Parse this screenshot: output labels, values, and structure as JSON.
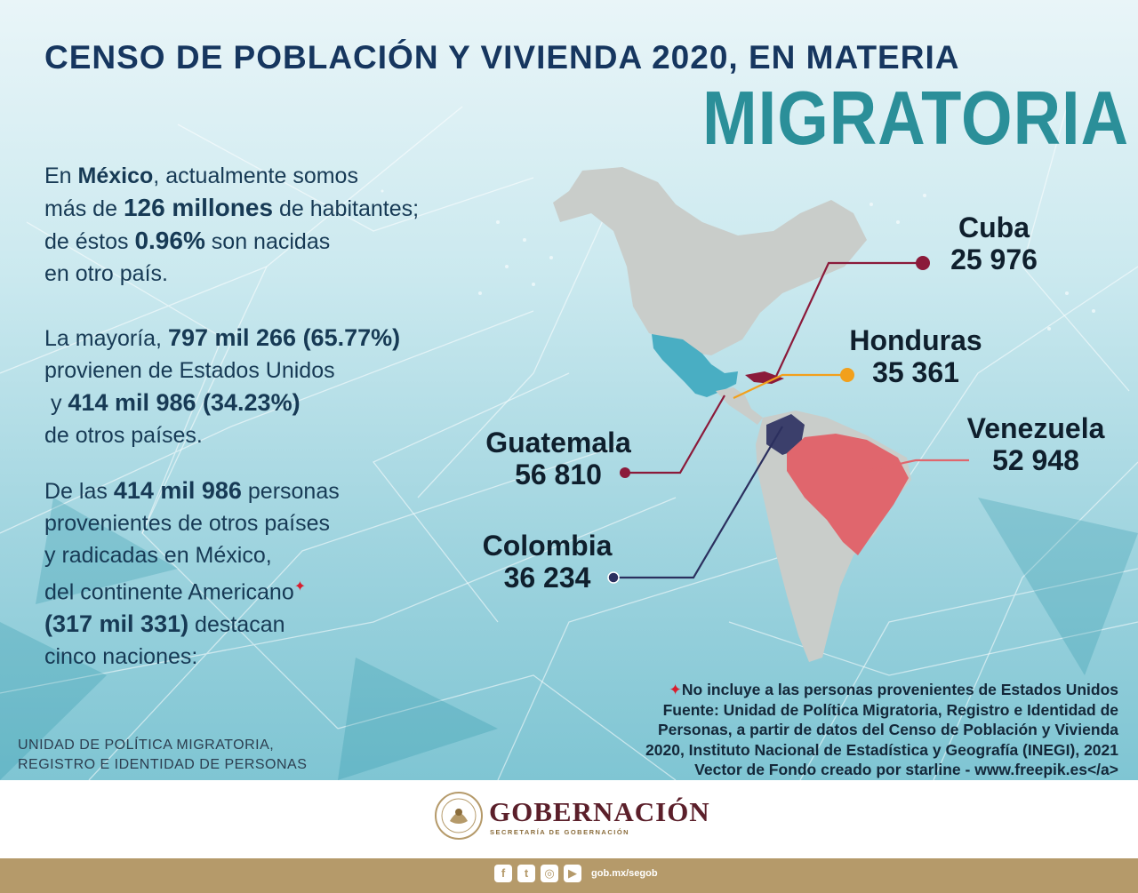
{
  "title": {
    "line1": "CENSO DE POBLACIÓN Y VIVIENDA 2020, EN MATERIA",
    "line2": "MIGRATORIA"
  },
  "intro": {
    "l1a": "En ",
    "l1b": "México",
    "l1c": ", actualmente somos",
    "l2a": "más de ",
    "l2b": "126 millones",
    "l2c": " de habitantes;",
    "l3a": "de éstos ",
    "l3b": "0.96%",
    "l3c": " son nacidas",
    "l4": "en otro país."
  },
  "majority": {
    "l1a": "La mayoría, ",
    "l1b": "797 mil 266 (65.77%)",
    "l2": "provienen de Estados Unidos",
    "l3a": " y ",
    "l3b": "414 mil 986 (34.23%)",
    "l4": "de otros países."
  },
  "others": {
    "l1a": "De las ",
    "l1b": "414 mil 986",
    "l1c": " personas",
    "l2": "provenientes de otros países",
    "l3": "y radicadas en México,",
    "l4": "del continente Americano",
    "l5a": "(317 mil 331)",
    "l5b": " destacan",
    "l6": "cinco naciones:",
    "star": "✦"
  },
  "map": {
    "countries": [
      {
        "name": "Cuba",
        "value": "25 976",
        "color": "#8b1a3a"
      },
      {
        "name": "Honduras",
        "value": "35 361",
        "color": "#f2a01c"
      },
      {
        "name": "Guatemala",
        "value": "56 810",
        "color": "#8b1a3a"
      },
      {
        "name": "Venezuela",
        "value": "52 948",
        "color": "#e0666d"
      },
      {
        "name": "Colombia",
        "value": "36 234",
        "color": "#2b2f5e"
      }
    ],
    "colors": {
      "land": "#c9cdca",
      "mexico": "#49aec3",
      "brazil": "#e0666d",
      "colombia": "#3b3f6b"
    }
  },
  "notes": {
    "star": "✦",
    "l1": "No incluye a  las personas provenientes de Estados Unidos",
    "l2": "Fuente: Unidad de Política Migratoria, Registro e Identidad de",
    "l3": "Personas, a partir de datos del Censo de Población y Vivienda",
    "l4": "2020, Instituto Nacional de Estadística y Geografía (INEGI), 2021",
    "l5": "Vector de Fondo creado por starline - www.freepik.es</a>"
  },
  "unit": {
    "l1": "UNIDAD DE POLÍTICA MIGRATORIA,",
    "l2": "REGISTRO E IDENTIDAD DE PERSONAS"
  },
  "footer": {
    "brand": "GOBERNACIÓN",
    "subtitle": "SECRETARÍA DE GOBERNACIÓN",
    "url": "gob.mx/segob",
    "bar_color": "#b59a6a"
  }
}
